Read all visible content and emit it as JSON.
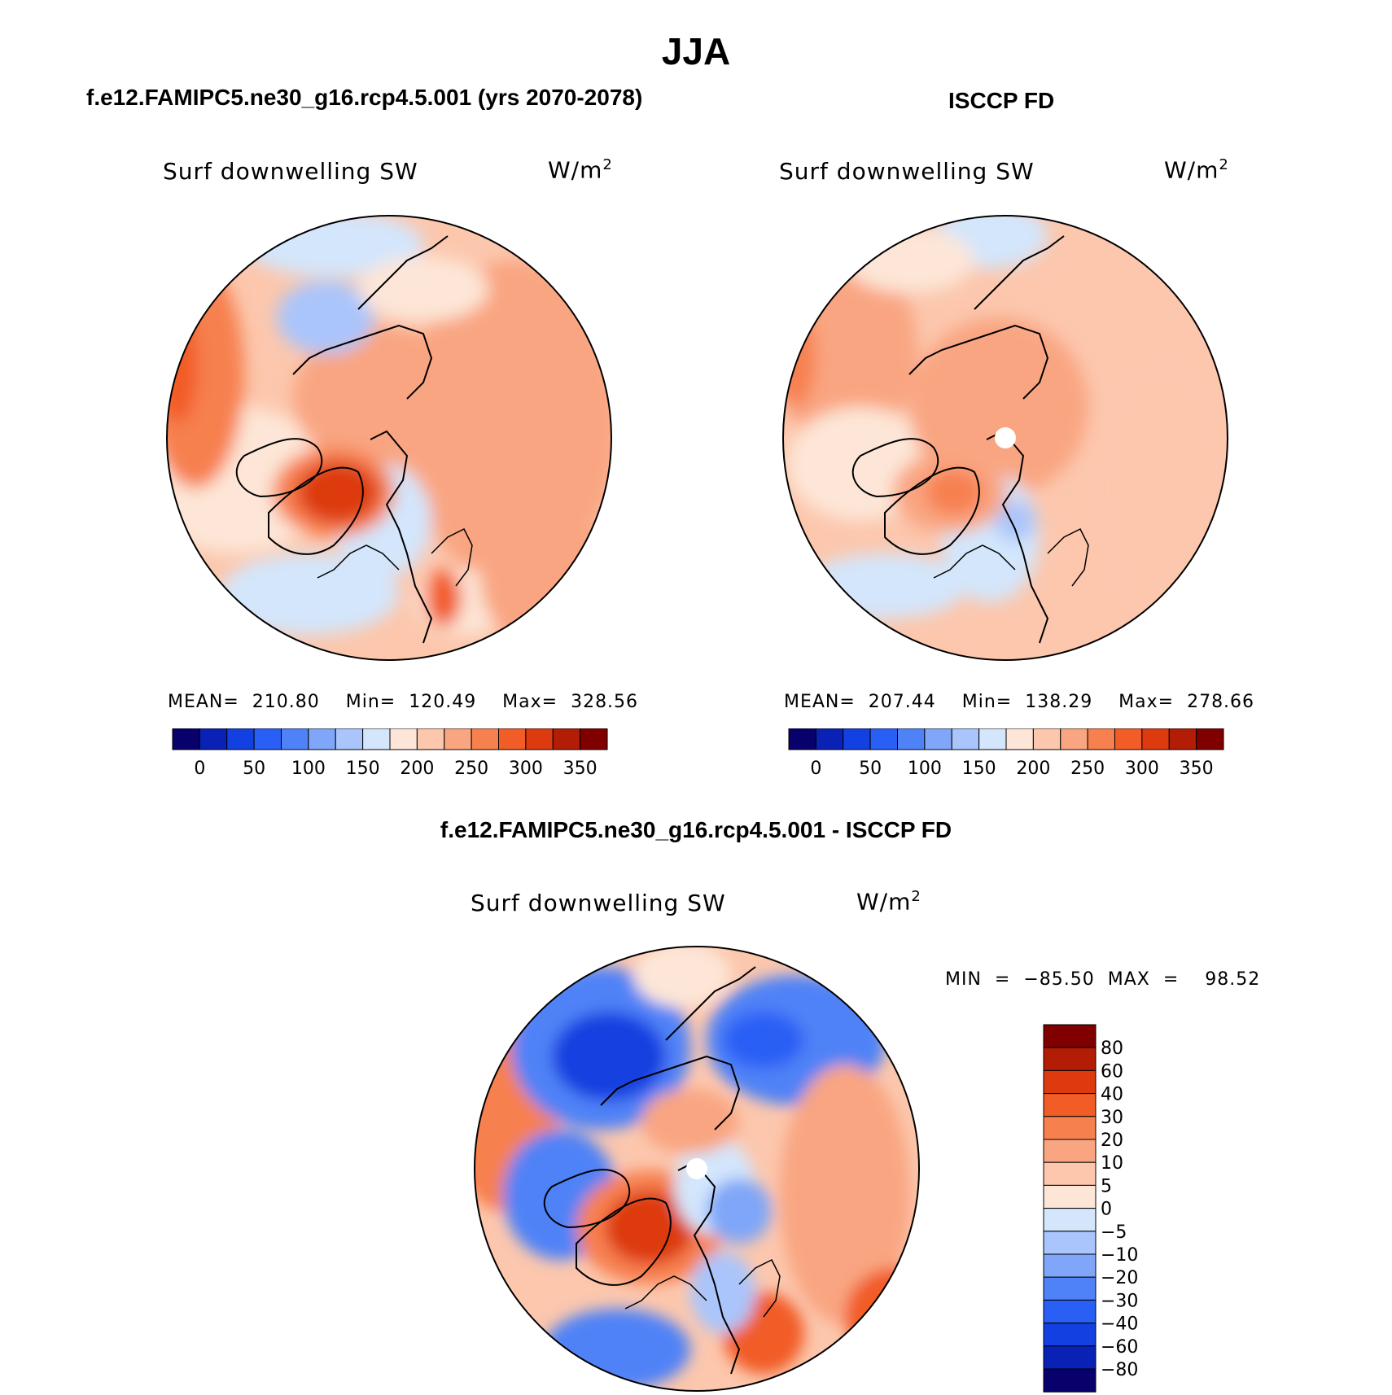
{
  "page": {
    "title": "JJA"
  },
  "panels": [
    {
      "title": "f.e12.FAMIPC5.ne30_g16.rcp4.5.001 (yrs 2070-2078)",
      "variable": "Surf  downwelling  SW",
      "units": "W/m",
      "units_exp": "2",
      "stats": "MEAN=  210.80    Min=  120.49    Max=  328.56",
      "colorbar": {
        "colors": [
          "#08006b",
          "#0a21b5",
          "#1340e0",
          "#2a5ff5",
          "#4f82f7",
          "#7fa6f8",
          "#aac5fb",
          "#d3e6fc",
          "#fde6d7",
          "#fcc7ad",
          "#f9a581",
          "#f7804f",
          "#f25c26",
          "#dd3a0f",
          "#b31c05",
          "#800000"
        ],
        "labels": [
          "0",
          "50",
          "100",
          "150",
          "200",
          "250",
          "300",
          "350"
        ]
      }
    },
    {
      "title": "ISCCP FD",
      "variable": "Surf  downwelling  SW",
      "units": "W/m",
      "units_exp": "2",
      "stats": "MEAN=  207.44    Min=  138.29    Max=  278.66",
      "colorbar": {
        "colors": [
          "#08006b",
          "#0a21b5",
          "#1340e0",
          "#2a5ff5",
          "#4f82f7",
          "#7fa6f8",
          "#aac5fb",
          "#d3e6fc",
          "#fde6d7",
          "#fcc7ad",
          "#f9a581",
          "#f7804f",
          "#f25c26",
          "#dd3a0f",
          "#b31c05",
          "#800000"
        ],
        "labels": [
          "0",
          "50",
          "100",
          "150",
          "200",
          "250",
          "300",
          "350"
        ]
      }
    },
    {
      "title": "f.e12.FAMIPC5.ne30_g16.rcp4.5.001 - ISCCP FD",
      "variable": "Surf  downwelling  SW",
      "units": "W/m",
      "units_exp": "2",
      "stats": "MIN  =  −85.50  MAX  =    98.52",
      "colorbar": {
        "colors": [
          "#800000",
          "#b31c05",
          "#dd3a0f",
          "#f25c26",
          "#f7804f",
          "#f9a581",
          "#fcc7ad",
          "#fde6d7",
          "#d3e6fc",
          "#aac5fb",
          "#7fa6f8",
          "#4f82f7",
          "#2a5ff5",
          "#1340e0",
          "#0a21b5",
          "#08006b"
        ],
        "labels": [
          "80",
          "60",
          "40",
          "30",
          "20",
          "10",
          "5",
          "0",
          "−5",
          "−10",
          "−20",
          "−30",
          "−40",
          "−60",
          "−80"
        ]
      }
    }
  ]
}
